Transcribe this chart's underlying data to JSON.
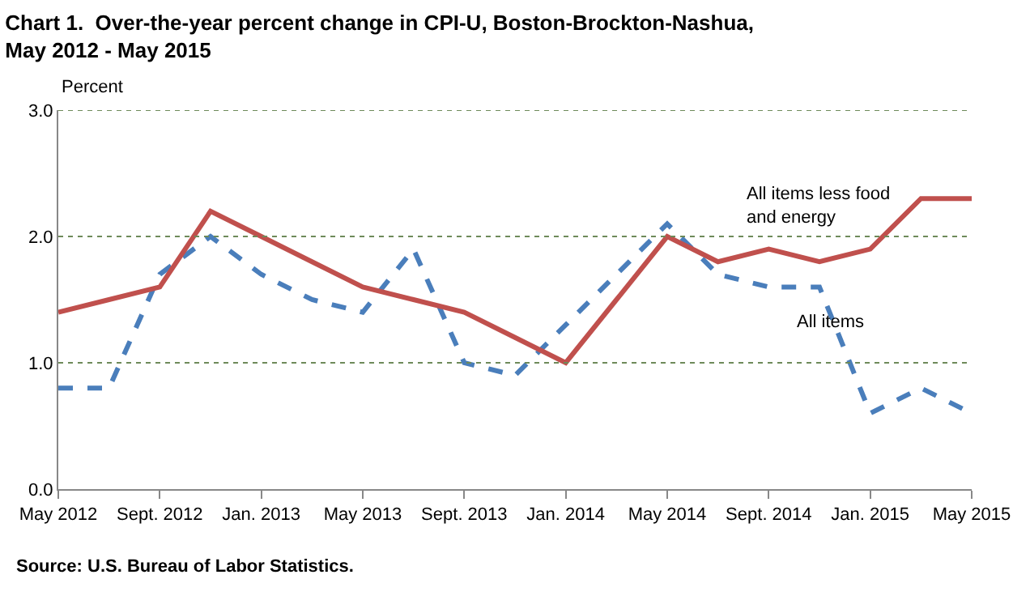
{
  "chart_data": {
    "type": "line",
    "title": "Chart 1.  Over-the-year percent change in CPI-U, Boston-Brockton-Nashua,\nMay 2012 - May 2015",
    "ylabel": "Percent",
    "categories": [
      "May 2012",
      null,
      "Sept. 2012",
      null,
      "Jan. 2013",
      null,
      "May 2013",
      null,
      "Sept. 2013",
      null,
      "Jan. 2014",
      null,
      "May 2014",
      null,
      "Sept. 2014",
      null,
      "Jan. 2015",
      null,
      "May 2015"
    ],
    "series": [
      {
        "name": "All items",
        "color": "#4a7ebb",
        "line_style": "dashed",
        "values": [
          0.8,
          0.8,
          1.7,
          2.0,
          1.7,
          1.5,
          1.4,
          1.9,
          1.0,
          0.9,
          1.3,
          1.7,
          2.1,
          1.7,
          1.6,
          1.6,
          0.6,
          0.8,
          0.6
        ]
      },
      {
        "name": "All items less food and energy",
        "color": "#c0504d",
        "line_style": "solid",
        "values": [
          1.4,
          1.5,
          1.6,
          2.2,
          2.0,
          1.8,
          1.6,
          1.5,
          1.4,
          1.2,
          1.0,
          1.5,
          2.0,
          1.8,
          1.9,
          1.8,
          1.9,
          2.3,
          2.3
        ]
      }
    ],
    "ylim": [
      0,
      3.0
    ],
    "yticks": [
      {
        "value": 0,
        "label": "0.0"
      },
      {
        "value": 1,
        "label": "1.0"
      },
      {
        "value": 2,
        "label": "2.0"
      },
      {
        "value": 3,
        "label": "3.0"
      }
    ],
    "grid": "y",
    "legend": false,
    "marker": "none",
    "annotations": [
      "Source: U.S. Bureau of Labor Statistics."
    ]
  }
}
